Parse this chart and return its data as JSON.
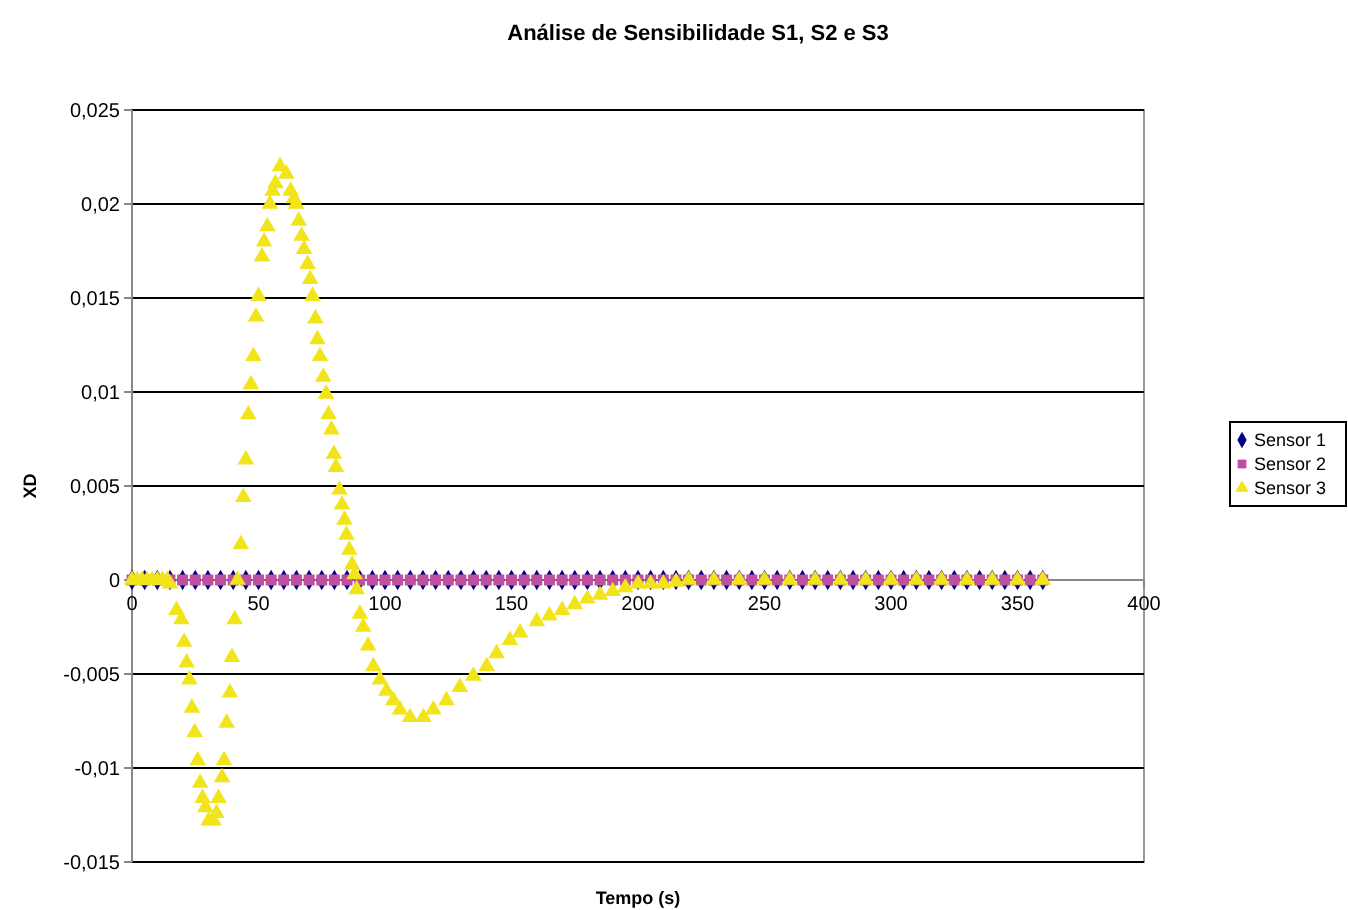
{
  "chart_data": {
    "type": "scatter",
    "title": "Análise de Sensibilidade S1, S2 e S3",
    "xlabel": "Tempo (s)",
    "ylabel": "XD",
    "xlim": [
      0,
      400
    ],
    "xticks": [
      0,
      50,
      100,
      150,
      200,
      250,
      300,
      350,
      400
    ],
    "ylim": [
      -0.015,
      0.025
    ],
    "yticks": [
      {
        "value": -0.015,
        "label": "-0,015"
      },
      {
        "value": -0.01,
        "label": "-0,01"
      },
      {
        "value": -0.005,
        "label": "-0,005"
      },
      {
        "value": 0,
        "label": "0"
      },
      {
        "value": 0.005,
        "label": "0,005"
      },
      {
        "value": 0.01,
        "label": "0,01"
      },
      {
        "value": 0.015,
        "label": "0,015"
      },
      {
        "value": 0.02,
        "label": "0,02"
      },
      {
        "value": 0.025,
        "label": "0,025"
      }
    ],
    "grid": "y",
    "legend": "right",
    "x": [
      0,
      5,
      10,
      15,
      20,
      25,
      30,
      35,
      40,
      45,
      50,
      55,
      60,
      65,
      70,
      75,
      80,
      85,
      90,
      95,
      100,
      105,
      110,
      115,
      120,
      125,
      130,
      135,
      140,
      145,
      150,
      155,
      160,
      165,
      170,
      175,
      180,
      185,
      190,
      195,
      200,
      205,
      210,
      215,
      220,
      225,
      230,
      235,
      240,
      245,
      250,
      255,
      260,
      265,
      270,
      275,
      280,
      285,
      290,
      295,
      300,
      305,
      310,
      315,
      320,
      325,
      330,
      335,
      340,
      345,
      350,
      355,
      360
    ],
    "series": [
      {
        "name": "Sensor 1",
        "color": "#000080",
        "marker": "diamond",
        "values": [
          0,
          0,
          0,
          0,
          0,
          0,
          0,
          0,
          0,
          0,
          0,
          0,
          0,
          0,
          0,
          0,
          0,
          0,
          0,
          0,
          0,
          0,
          0,
          0,
          0,
          0,
          0,
          0,
          0,
          0,
          0,
          0,
          0,
          0,
          0,
          0,
          0,
          0,
          0,
          0,
          0,
          0,
          0,
          0,
          0,
          0,
          0,
          0,
          0,
          0,
          0,
          0,
          0,
          0,
          0,
          0,
          0,
          0,
          0,
          0,
          0,
          0,
          0,
          0,
          0,
          0,
          0,
          0,
          0,
          0,
          0,
          0,
          0
        ]
      },
      {
        "name": "Sensor 2",
        "color": "#bf4f9f",
        "marker": "square",
        "values": [
          0,
          0,
          0,
          0,
          0,
          0,
          0,
          0,
          0,
          0,
          0,
          0,
          0,
          0,
          0,
          0,
          0,
          0,
          0,
          0,
          0,
          0,
          0,
          0,
          0,
          0,
          0,
          0,
          0,
          0,
          0,
          0,
          0,
          0,
          0,
          0,
          0,
          0,
          0,
          0,
          0,
          0,
          0,
          0,
          0,
          0,
          0,
          0,
          0,
          0,
          0,
          0,
          0,
          0,
          0,
          0,
          0,
          0,
          0,
          0,
          0,
          0,
          0,
          0,
          0,
          0,
          0,
          0,
          0,
          0,
          0,
          0,
          0
        ]
      },
      {
        "name": "Sensor 3",
        "color": "#f2e41a",
        "marker": "triangle",
        "x": [
          0,
          2,
          4,
          6,
          8,
          10,
          12,
          14,
          15,
          17.6,
          19.5,
          20.6,
          21.6,
          22.7,
          23.7,
          24.8,
          26,
          26.9,
          27.9,
          29,
          30.3,
          32.2,
          33.4,
          34.2,
          35.6,
          36.4,
          37.4,
          38.7,
          39.5,
          40.6,
          41.7,
          43,
          44,
          45,
          46,
          47,
          48,
          49,
          50,
          51.4,
          52.2,
          53.5,
          54.5,
          55.6,
          56.7,
          58.5,
          61,
          62.7,
          64,
          64.8,
          65.9,
          67,
          68,
          69.4,
          70.4,
          71.4,
          72.5,
          73.3,
          74.3,
          75.6,
          76.7,
          77.7,
          78.8,
          79.8,
          80.6,
          82,
          83,
          84,
          84.8,
          85.9,
          87,
          88,
          88.8,
          90.1,
          91.4,
          93.3,
          95.4,
          98,
          100.6,
          103.3,
          105.9,
          109.9,
          115.2,
          119.1,
          124.3,
          129.6,
          134.9,
          140.2,
          144.1,
          149.4,
          153.4,
          160,
          165,
          170,
          175,
          180,
          185,
          190,
          195,
          200,
          205,
          210,
          215,
          220,
          230,
          240,
          250,
          260,
          270,
          280,
          290,
          300,
          310,
          320,
          330,
          340,
          350,
          360
        ],
        "values": [
          0,
          0,
          0,
          0,
          0,
          0,
          0,
          0,
          -0.0002,
          -0.0016,
          -0.0021,
          -0.0033,
          -0.0044,
          -0.0053,
          -0.0068,
          -0.0081,
          -0.0096,
          -0.0108,
          -0.0116,
          -0.0121,
          -0.0128,
          -0.0128,
          -0.0124,
          -0.0116,
          -0.0105,
          -0.0096,
          -0.0076,
          -0.006,
          -0.0041,
          -0.0021,
          0,
          0.0019,
          0.0044,
          0.0064,
          0.0088,
          0.0104,
          0.0119,
          0.014,
          0.0151,
          0.0172,
          0.018,
          0.0188,
          0.02,
          0.0207,
          0.0211,
          0.022,
          0.0216,
          0.0207,
          0.0203,
          0.02,
          0.0191,
          0.0183,
          0.0176,
          0.0168,
          0.016,
          0.0151,
          0.0139,
          0.0128,
          0.0119,
          0.0108,
          0.0099,
          0.0088,
          0.008,
          0.0067,
          0.006,
          0.0048,
          0.004,
          0.0032,
          0.0024,
          0.0016,
          0.0008,
          0.0003,
          -0.0005,
          -0.0018,
          -0.0025,
          -0.0035,
          -0.0046,
          -0.0053,
          -0.0059,
          -0.0064,
          -0.0069,
          -0.0073,
          -0.0073,
          -0.0069,
          -0.0064,
          -0.0057,
          -0.0051,
          -0.0046,
          -0.0039,
          -0.0032,
          -0.0028,
          -0.0022,
          -0.0019,
          -0.0016,
          -0.0013,
          -0.001,
          -0.0008,
          -0.0006,
          -0.0004,
          -0.0002,
          -0.0002,
          -0.0002,
          -0.0001,
          0,
          0,
          0,
          0,
          0,
          0,
          0,
          0,
          0,
          0,
          0,
          0,
          0,
          0,
          0
        ]
      }
    ]
  }
}
